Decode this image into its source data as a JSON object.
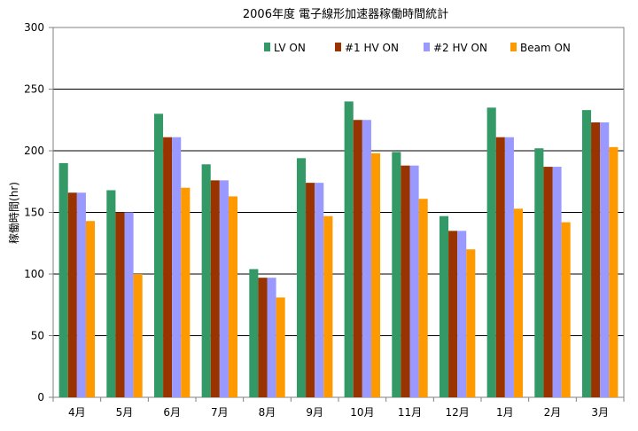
{
  "chart_data": {
    "type": "bar",
    "title": "2006年度 電子線形加速器稼働時間統計",
    "ylabel": "稼働時間(hr)",
    "xlabel": "",
    "ylim": [
      0,
      300
    ],
    "yticks": [
      0,
      50,
      100,
      150,
      200,
      250,
      300
    ],
    "grid": true,
    "legend": "top-right",
    "categories": [
      "4月",
      "5月",
      "6月",
      "7月",
      "8月",
      "9月",
      "10月",
      "11月",
      "12月",
      "1月",
      "2月",
      "3月"
    ],
    "series": [
      {
        "name": "LV ON",
        "color": "#339966",
        "values": [
          190,
          168,
          230,
          189,
          104,
          194,
          240,
          199,
          147,
          235,
          202,
          233
        ]
      },
      {
        "name": "#1 HV ON",
        "color": "#993300",
        "values": [
          166,
          150,
          211,
          176,
          97,
          174,
          225,
          188,
          135,
          211,
          187,
          223
        ]
      },
      {
        "name": "#2 HV ON",
        "color": "#9999ff",
        "values": [
          166,
          150,
          211,
          176,
          97,
          174,
          225,
          188,
          135,
          211,
          187,
          223
        ]
      },
      {
        "name": "Beam ON",
        "color": "#ff9900",
        "values": [
          143,
          100,
          170,
          163,
          81,
          147,
          198,
          161,
          120,
          153,
          142,
          203
        ]
      }
    ]
  }
}
